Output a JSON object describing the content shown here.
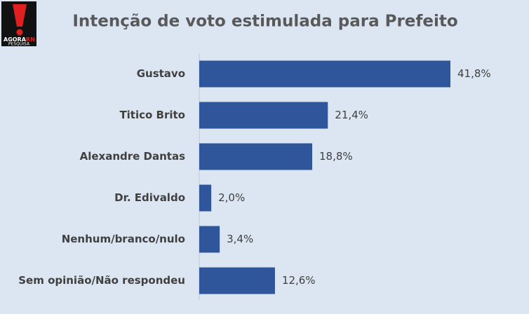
{
  "logo": {
    "word": "AGORA",
    "accent": "RN",
    "sub": "PESQUISA"
  },
  "chart_data": {
    "type": "bar",
    "orientation": "horizontal",
    "title": "Intenção de voto estimulada para Prefeito",
    "categories": [
      "Gustavo",
      "Titico Brito",
      "Alexandre Dantas",
      "Dr. Edivaldo",
      "Nenhum/branco/nulo",
      "Sem opinião/Não respondeu"
    ],
    "values": [
      41.8,
      21.4,
      18.8,
      2.0,
      3.4,
      12.6
    ],
    "value_labels": [
      "41,8%",
      "21,4%",
      "18,8%",
      "2,0%",
      "3,4%",
      "12,6%"
    ],
    "color": "#2f559a"
  }
}
